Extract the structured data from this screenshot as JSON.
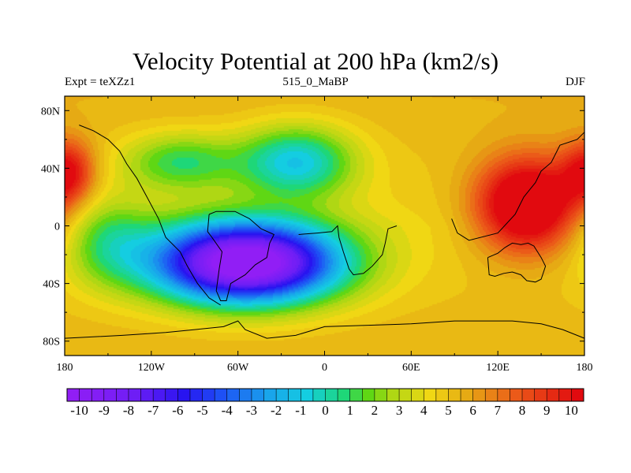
{
  "chart_data": {
    "type": "heatmap",
    "title": "Velocity Potential at 200 hPa (km2/s)",
    "left_label": "Expt = teXZz1",
    "center_label": "515_0_MaBP",
    "right_label": "DJF",
    "x_ticks": [
      "180",
      "120W",
      "60W",
      "0",
      "60E",
      "120E",
      "180"
    ],
    "x_tick_values": [
      -180,
      -120,
      -60,
      0,
      60,
      120,
      180
    ],
    "y_ticks": [
      "80N",
      "40N",
      "0",
      "40S",
      "80S"
    ],
    "y_tick_values": [
      80,
      40,
      0,
      -40,
      -80
    ],
    "xlim": [
      -180,
      180
    ],
    "ylim": [
      -90,
      90
    ],
    "colorbar": {
      "min": -10.5,
      "max": 10.5,
      "step": 0.5,
      "labels": [
        "-10",
        "-9",
        "-8",
        "-7",
        "-6",
        "-5",
        "-4",
        "-3",
        "-2",
        "-1",
        "0",
        "1",
        "2",
        "3",
        "4",
        "5",
        "6",
        "7",
        "8",
        "9",
        "10"
      ]
    },
    "field_centers": [
      {
        "lon": 140,
        "lat": 15,
        "value": 11,
        "name": "maximum-west-pacific"
      },
      {
        "lon": -178,
        "lat": 38,
        "value": 8.5,
        "name": "maximum-north-pacific"
      },
      {
        "lon": -60,
        "lat": -20,
        "value": -10.5,
        "name": "minimum-south-america-atlantic"
      }
    ],
    "continent_outlines": [
      "south-america",
      "africa-tip",
      "australia",
      "antarctica",
      "north-america-west-coast",
      "asia-east"
    ]
  }
}
